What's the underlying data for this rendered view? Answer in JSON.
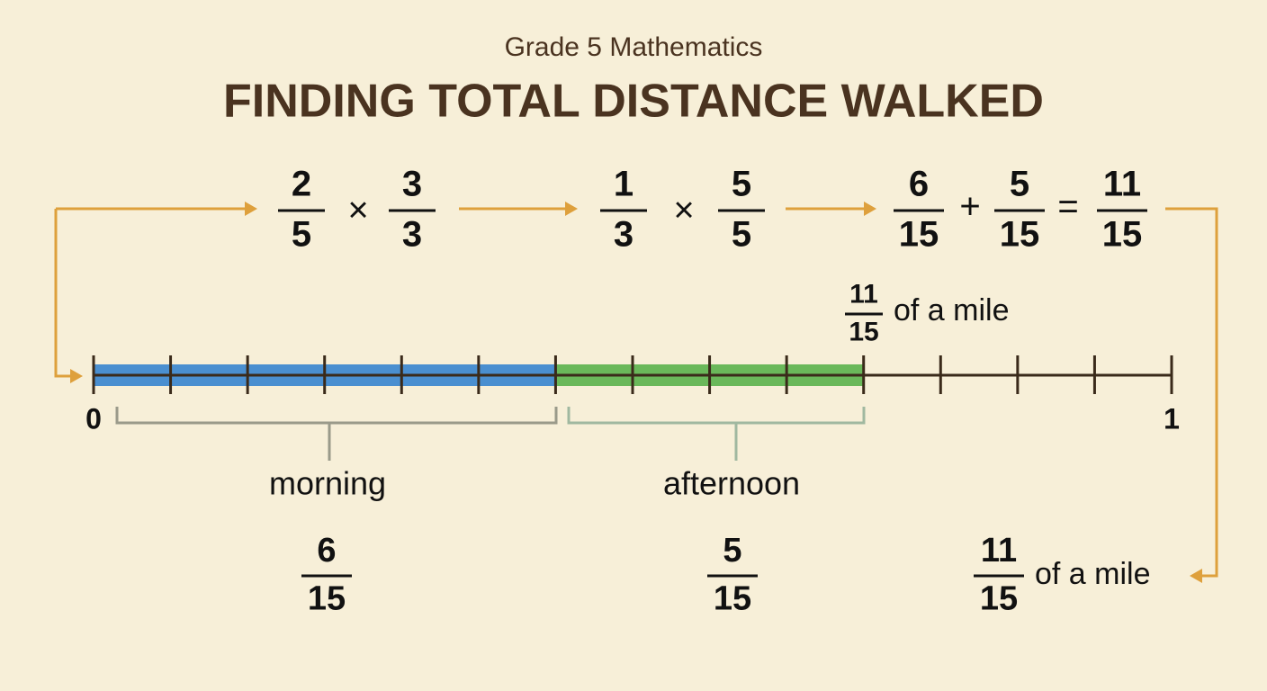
{
  "header": {
    "subtitle": "Grade 5 Mathematics",
    "title": "FINDING TOTAL DISTANCE WALKED"
  },
  "steps": [
    {
      "left": {
        "numerator": "2",
        "denominator": "5"
      },
      "operator": "×",
      "right": {
        "numerator": "3",
        "denominator": "3"
      }
    },
    {
      "left": {
        "numerator": "1",
        "denominator": "3"
      },
      "operator": "×",
      "right": {
        "numerator": "5",
        "denominator": "5"
      }
    }
  ],
  "sum": {
    "left": {
      "numerator": "6",
      "denominator": "15"
    },
    "operator": "+",
    "right": {
      "numerator": "5",
      "denominator": "15"
    },
    "equals": "=",
    "result": {
      "numerator": "11",
      "denominator": "15"
    }
  },
  "number_line": {
    "start": "0",
    "end": "1",
    "marker": {
      "numerator": "11",
      "denominator": "15",
      "unit": "of a mile"
    }
  },
  "segments": [
    {
      "label": "morning",
      "numerator": "6",
      "denominator": "15"
    },
    {
      "label": "afternoon",
      "numerator": "5",
      "denominator": "15"
    }
  ],
  "total": {
    "numerator": "11",
    "denominator": "15",
    "unit": "of a mile"
  }
}
